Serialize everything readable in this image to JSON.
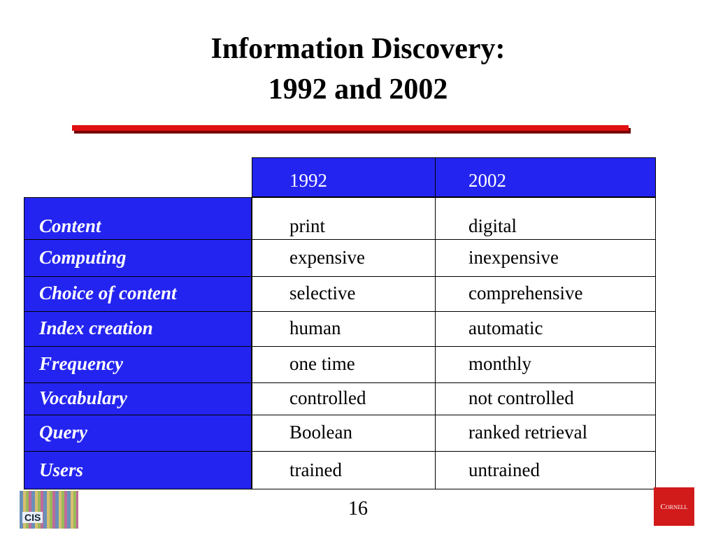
{
  "header": {
    "title": [
      "Information Discovery:",
      "1992 and 2002"
    ]
  },
  "table": {
    "columns": [
      "1992",
      "2002"
    ],
    "rows": [
      [
        "Content",
        "print",
        "digital"
      ],
      [
        "Computing",
        "expensive",
        "inexpensive"
      ],
      [
        "Choice of content",
        "selective",
        "comprehensive"
      ],
      [
        "Index creation",
        "human",
        "automatic"
      ],
      [
        "Frequency",
        "one time",
        "monthly"
      ],
      [
        "Vocabulary",
        "controlled",
        "not controlled"
      ],
      [
        "Query",
        "Boolean",
        "ranked retrieval"
      ],
      [
        "Users",
        "trained",
        "untrained"
      ]
    ]
  },
  "footer": {
    "page_number": "16",
    "logos": [
      "CIS",
      "Cornell"
    ]
  }
}
